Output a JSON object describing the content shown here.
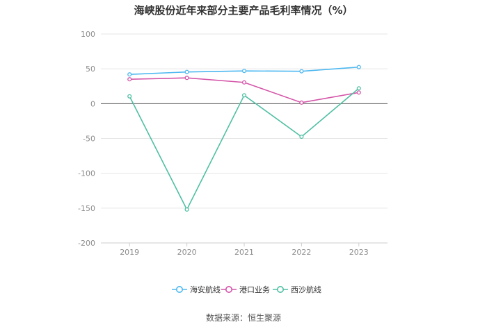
{
  "chart_data": {
    "type": "line",
    "title": "海峡股份近年来部分主要产品毛利率情况（%）",
    "categories": [
      "2019",
      "2020",
      "2021",
      "2022",
      "2023"
    ],
    "series": [
      {
        "name": "海安航线",
        "color": "#4db8f0",
        "values": [
          42,
          45.5,
          47,
          46.5,
          52.5
        ]
      },
      {
        "name": "港口业务",
        "color": "#d454a8",
        "values": [
          35,
          37,
          30.5,
          1.5,
          16
        ]
      },
      {
        "name": "西沙航线",
        "color": "#4fbfa3",
        "values": [
          10.5,
          -152,
          12,
          -47.5,
          22
        ]
      }
    ],
    "ylim": [
      -200,
      100
    ],
    "yticks": [
      100,
      50,
      0,
      -50,
      -100,
      -150,
      -200
    ],
    "grid": true,
    "legend_position": "bottom",
    "source": "数据来源：恒生聚源"
  }
}
